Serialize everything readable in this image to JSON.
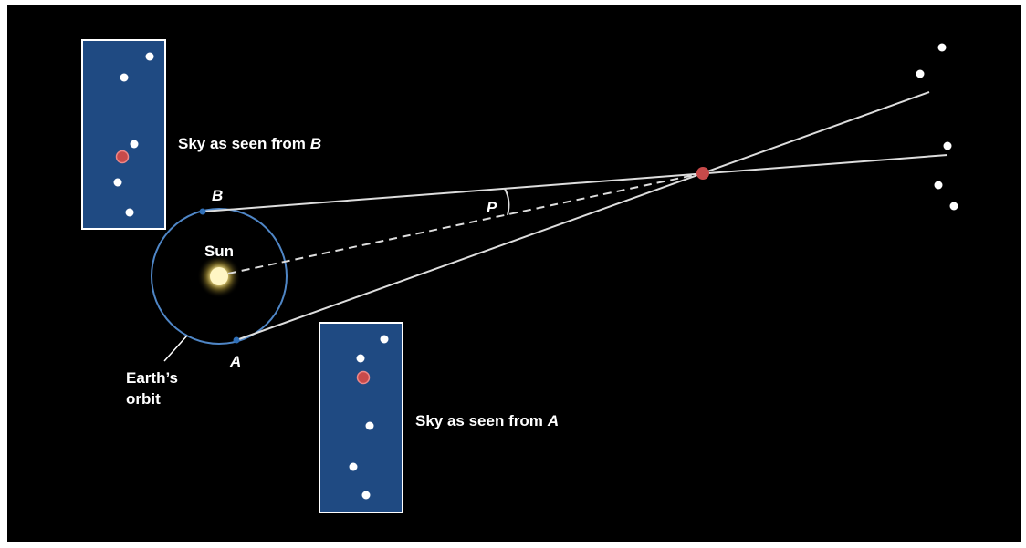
{
  "panels": [
    {
      "caption": "Sky as seen from",
      "point": "B"
    },
    {
      "caption": "Sky as seen from",
      "point": "A"
    }
  ],
  "labels": {
    "b": "B",
    "a": "A",
    "p": "P",
    "sun": "Sun",
    "orbit": [
      "Earth’s",
      "orbit"
    ]
  }
}
